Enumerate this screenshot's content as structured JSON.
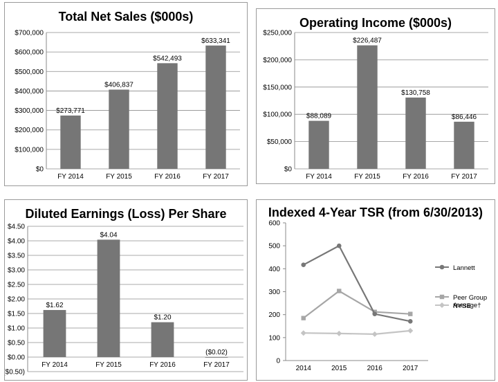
{
  "chart_data": [
    {
      "type": "bar",
      "title": "Total Net Sales ($000s)",
      "categories": [
        "FY 2014",
        "FY 2015",
        "FY 2016",
        "FY 2017"
      ],
      "values": [
        273771,
        406837,
        542493,
        633341
      ],
      "value_labels": [
        "$273,771",
        "$406,837",
        "$542,493",
        "$633,341"
      ],
      "ylim": [
        0,
        700000
      ],
      "yticks": [
        0,
        100000,
        200000,
        300000,
        400000,
        500000,
        600000,
        700000
      ],
      "ytick_labels": [
        "$0",
        "$100,000",
        "$200,000",
        "$300,000",
        "$400,000",
        "$500,000",
        "$600,000",
        "$700,000"
      ],
      "grid": true
    },
    {
      "type": "bar",
      "title": "Operating Income ($000s)",
      "categories": [
        "FY 2014",
        "FY 2015",
        "FY 2016",
        "FY 2017"
      ],
      "values": [
        88089,
        226487,
        130758,
        86446
      ],
      "value_labels": [
        "$88,089",
        "$226,487",
        "$130,758",
        "$86,446"
      ],
      "ylim": [
        0,
        250000
      ],
      "yticks": [
        0,
        50000,
        100000,
        150000,
        200000,
        250000
      ],
      "ytick_labels": [
        "$0",
        "$50,000",
        "$100,000",
        "$150,000",
        "$200,000",
        "$250,000"
      ],
      "grid": true
    },
    {
      "type": "bar",
      "title": "Diluted Earnings (Loss) Per Share",
      "categories": [
        "FY 2014",
        "FY 2015",
        "FY 2016",
        "FY 2017"
      ],
      "values": [
        1.62,
        4.04,
        1.2,
        -0.02
      ],
      "value_labels": [
        "$1.62",
        "$4.04",
        "$1.20",
        "($0.02)"
      ],
      "ylim": [
        -0.5,
        4.5
      ],
      "yticks": [
        -0.5,
        0,
        0.5,
        1,
        1.5,
        2,
        2.5,
        3,
        3.5,
        4,
        4.5
      ],
      "ytick_labels": [
        "($0.50)",
        "$0.00",
        "$0.50",
        "$1.00",
        "$1.50",
        "$2.00",
        "$2.50",
        "$3.00",
        "$3.50",
        "$4.00",
        "$4.50"
      ],
      "grid": true
    },
    {
      "type": "line",
      "title": "Indexed 4-Year TSR (from 6/30/2013)",
      "categories": [
        "2014",
        "2015",
        "2016",
        "2017"
      ],
      "ylim": [
        0,
        600
      ],
      "yticks": [
        0,
        100,
        200,
        300,
        400,
        500,
        600
      ],
      "ytick_labels": [
        "0",
        "100",
        "200",
        "300",
        "400",
        "500",
        "600"
      ],
      "grid": false,
      "legend_position": "right",
      "series": [
        {
          "name": "Lannett",
          "values": [
            417,
            500,
            203,
            171
          ],
          "color": "#777777",
          "marker": "circle"
        },
        {
          "name": "Peer Group Average†",
          "values": [
            185,
            303,
            212,
            203
          ],
          "color": "#a6a6a6",
          "marker": "square"
        },
        {
          "name": "NYSE",
          "values": [
            120,
            118,
            115,
            130
          ],
          "color": "#c4c4c4",
          "marker": "diamond"
        }
      ]
    }
  ]
}
